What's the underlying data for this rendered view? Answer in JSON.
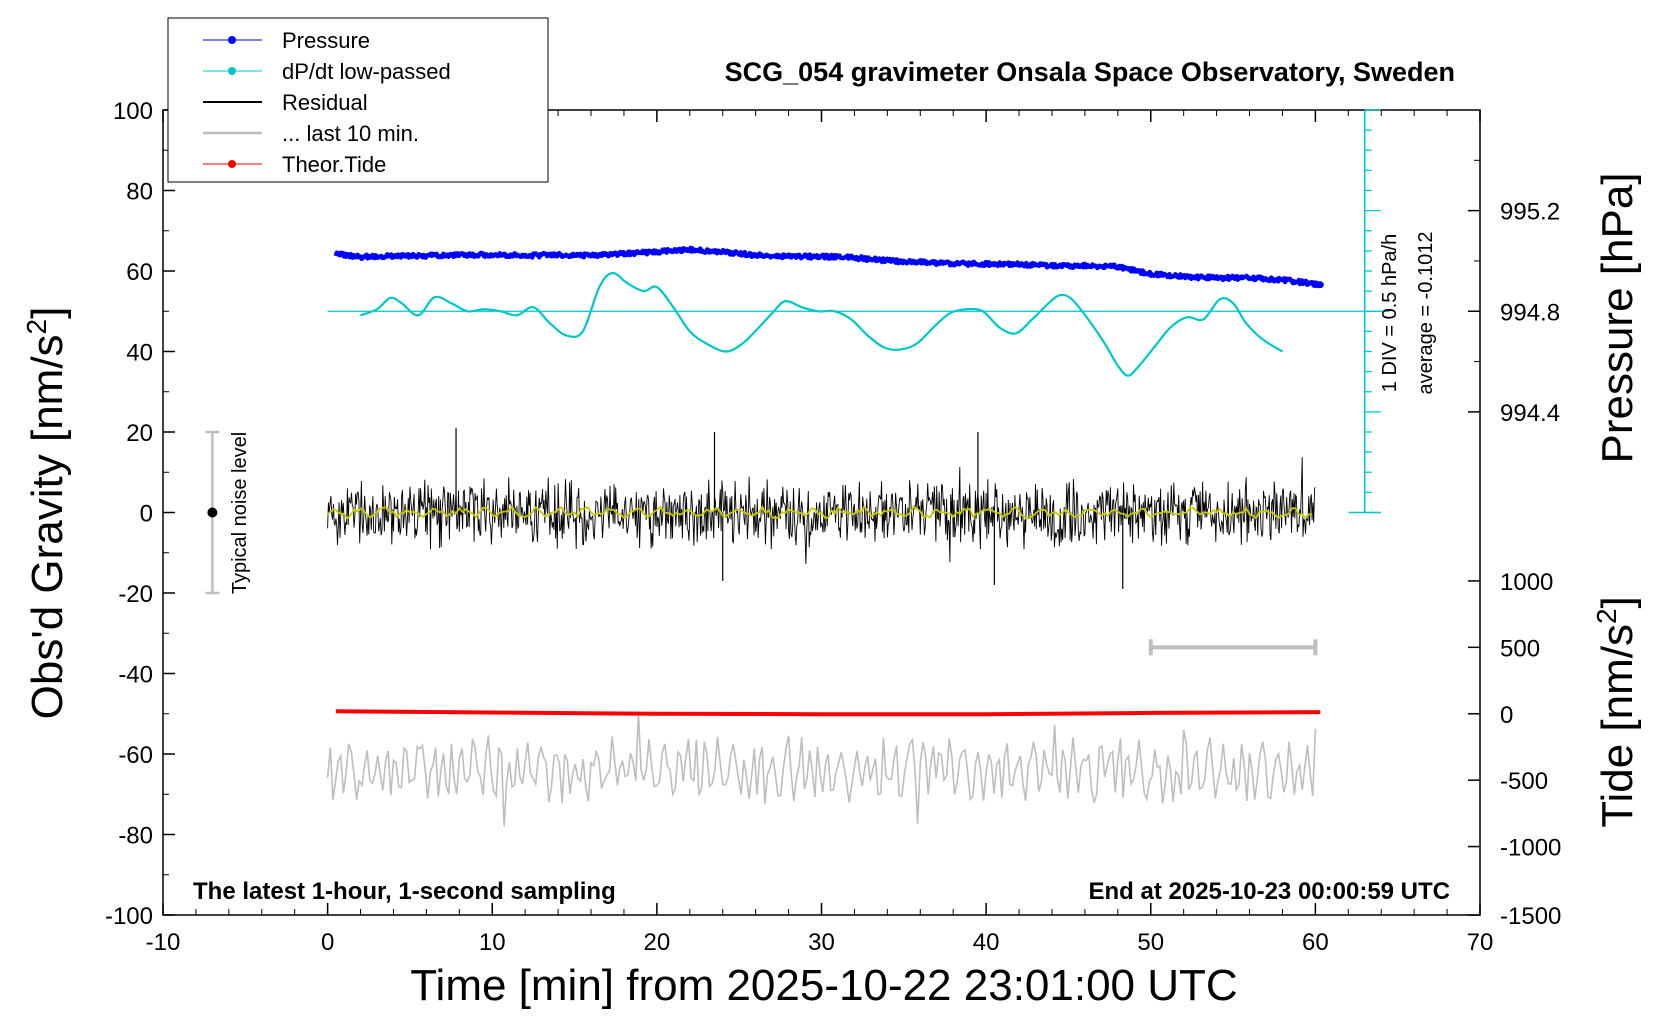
{
  "chart_data": {
    "type": "line",
    "title": "SCG_054 gravimeter Onsala Space Observatory, Sweden",
    "xlabel": "Time [min] from 2025-10-22 23:01:00 UTC",
    "ylabel_left_main": "Obs'd Gravity [nm/s",
    "ylabel_left_sup": "2",
    "ylabel_left_tail": "]",
    "ylabel_right_pressure": "Pressure [hPa]",
    "ylabel_right_tide_main": "Tide [nm/s",
    "ylabel_right_tide_sup": "2",
    "ylabel_right_tide_tail": "]",
    "xlim": [
      -10,
      70
    ],
    "ylim": [
      -100,
      100
    ],
    "x_ticks": [
      -10,
      0,
      10,
      20,
      30,
      40,
      50,
      60,
      70
    ],
    "y_ticks": [
      100,
      80,
      60,
      40,
      20,
      0,
      -20,
      -40,
      -60,
      -80,
      -100
    ],
    "pressure_axis": {
      "ticks": [
        "995.2",
        "994.8",
        "994.4"
      ],
      "tick_values_gravity_units": [
        75,
        50,
        25
      ]
    },
    "tide_axis": {
      "ticks": [
        "1000",
        "500",
        "0",
        "-500",
        "-1000",
        "-1500"
      ],
      "tick_values_gravity_units": [
        -17,
        -33.5,
        -50,
        -66.5,
        -83,
        -100
      ]
    },
    "legend": [
      {
        "name": "Pressure",
        "color": "#0000ff",
        "marker": true
      },
      {
        "name": "dP/dt low-passed",
        "color": "#00c8c8",
        "marker": true
      },
      {
        "name": "Residual",
        "color": "#000000",
        "marker": false
      },
      {
        "name": "... last 10 min.",
        "color": "#bebebe",
        "marker": false
      },
      {
        "name": "Theor.Tide",
        "color": "#ff0000",
        "marker": true
      }
    ],
    "annotations": {
      "bottom_left": "The latest 1-hour, 1-second sampling",
      "bottom_right": "End at 2025-10-23 00:00:59 UTC",
      "noise": "Typical noise level",
      "div_note": "1 DIV = 0.5 hPa/h",
      "average_note": "average = -0.1012"
    },
    "noise_bar": {
      "x": -7,
      "center": 0,
      "halfwidth": 20
    },
    "window_bar": {
      "x": [
        50,
        60
      ],
      "y": -33.5
    },
    "dpdt_zero_line": 50,
    "dpdt_scale_bar": {
      "x": 63,
      "y": [
        0,
        100
      ]
    },
    "series": [
      {
        "name": "Pressure",
        "color": "#0000ff",
        "x": [
          0.5,
          2,
          4,
          6,
          8,
          10,
          12,
          14,
          16,
          18,
          20,
          22,
          24,
          26,
          28,
          30,
          32,
          34,
          36,
          38,
          40,
          42,
          44,
          46,
          48,
          50,
          52,
          54,
          56,
          58,
          60.3
        ],
        "y": [
          64.2,
          63.5,
          63.7,
          63.8,
          64.0,
          64.0,
          63.8,
          64.0,
          63.8,
          64.3,
          64.8,
          65.3,
          64.8,
          63.9,
          63.6,
          63.6,
          63.3,
          62.6,
          62.2,
          61.9,
          61.7,
          61.6,
          61.3,
          61.3,
          61.1,
          59.2,
          58.6,
          58.3,
          58.3,
          57.8,
          56.6
        ]
      },
      {
        "name": "dP/dt low-passed",
        "color": "#00c8c8",
        "x": [
          2,
          3,
          3.8,
          4.5,
          5.5,
          6.5,
          7.5,
          8.5,
          9.5,
          10.5,
          11.5,
          12.5,
          13.5,
          14.5,
          15.5,
          16.5,
          17.3,
          18.2,
          19.2,
          20,
          21,
          22,
          23,
          24.2,
          25.2,
          26.2,
          27,
          27.8,
          28.8,
          29.8,
          30.8,
          31.8,
          32.8,
          33.8,
          34.8,
          35.8,
          36.8,
          37.8,
          38.8,
          39.8,
          40.8,
          41.8,
          42.8,
          43.8,
          44.5,
          45.2,
          46.2,
          47.2,
          48,
          48.6,
          49.2,
          50.2,
          51.2,
          52.2,
          53.2,
          54.2,
          55,
          55.8,
          56.8,
          58
        ],
        "y": [
          49,
          50.5,
          53.3,
          52,
          49,
          53.5,
          52,
          50,
          50.5,
          50,
          49,
          51,
          47,
          44,
          45,
          56,
          59.5,
          57,
          55,
          56,
          51,
          45,
          42,
          40,
          42,
          46,
          49.5,
          52.5,
          51,
          50,
          50,
          48,
          44,
          41,
          40.5,
          42,
          46,
          49.5,
          50.5,
          50,
          46,
          44.5,
          48,
          52,
          54,
          53,
          48,
          42,
          36.5,
          34,
          36,
          41,
          46,
          48.5,
          48,
          53,
          52,
          47,
          43,
          40
        ]
      },
      {
        "name": "Residual",
        "color": "#000000",
        "x_range": [
          0,
          60
        ],
        "center": 0,
        "amplitude": 8,
        "peak_values": [
          {
            "x": 7.8,
            "y": 21
          },
          {
            "x": 23.5,
            "y": 20
          },
          {
            "x": 39.5,
            "y": 20
          },
          {
            "x": 40.5,
            "y": -18
          },
          {
            "x": 48.3,
            "y": -19
          },
          {
            "x": 24,
            "y": -17
          }
        ]
      },
      {
        "name": "Residual smoothed",
        "color": "#c8c800",
        "x_range": [
          0,
          60
        ],
        "center": 0,
        "amplitude": 1.5
      },
      {
        "name": "... last 10 min.",
        "color": "#bebebe",
        "x_range": [
          0,
          60
        ],
        "center": -64,
        "amplitude": 6
      },
      {
        "name": "Theor.Tide",
        "color": "#ff0000",
        "x": [
          0.5,
          10,
          20,
          30,
          40,
          50,
          60.3
        ],
        "y": [
          -49.4,
          -49.7,
          -50.0,
          -50.1,
          -50.1,
          -49.8,
          -49.6
        ]
      }
    ]
  }
}
